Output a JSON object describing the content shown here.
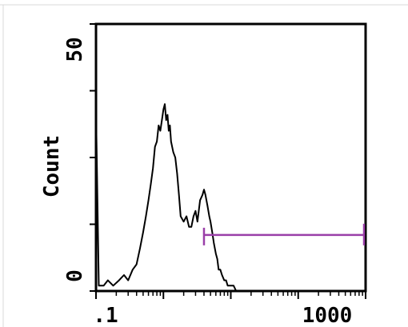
{
  "chart_data": {
    "type": "area",
    "subtype": "flow-cytometry-histogram",
    "xscale": "log",
    "xlim": [
      0.1,
      1000
    ],
    "ylim": [
      0,
      50
    ],
    "ylabel": "Count",
    "xlabel": "",
    "x_tick_labels": [
      ".1",
      "1000"
    ],
    "y_tick_labels": [
      "0",
      "50"
    ],
    "grid": false,
    "legend": "none",
    "series": [
      {
        "x": [
          0.1,
          0.11,
          0.13,
          0.15,
          0.18,
          0.22,
          0.26,
          0.3,
          0.35,
          0.4,
          0.45,
          0.5,
          0.55,
          0.6,
          0.65,
          0.7,
          0.75,
          0.8,
          0.85,
          0.9,
          0.95,
          1.0,
          1.05,
          1.1,
          1.15,
          1.2,
          1.25,
          1.3,
          1.4,
          1.5,
          1.6,
          1.7,
          1.8,
          2.0,
          2.2,
          2.4,
          2.6,
          2.8,
          3.0,
          3.2,
          3.5,
          3.8,
          4.0,
          4.2,
          4.5,
          4.8,
          5.0,
          5.3,
          5.6,
          6.0,
          6.3,
          6.6,
          7.0,
          7.4,
          8.0,
          8.5,
          9.0,
          9.5,
          10.0,
          10.5,
          11.0,
          12.0,
          13.0,
          14.0,
          15.0,
          16.0,
          18.0,
          20.0,
          22.0,
          25.0,
          28.0,
          30.0
        ],
        "values": [
          34,
          1,
          1,
          2,
          1,
          2,
          3,
          2,
          4,
          5,
          8,
          11,
          14,
          17,
          20,
          23,
          27,
          28,
          31,
          30,
          32,
          34,
          35,
          32,
          33,
          30,
          31,
          28,
          26,
          25,
          22,
          18,
          14,
          13,
          14,
          12,
          12,
          14,
          15,
          13,
          17,
          18,
          19,
          18,
          16,
          14,
          13,
          11,
          9,
          7,
          6,
          4,
          4,
          3,
          2,
          2,
          1,
          1,
          1,
          1,
          1,
          0,
          0,
          0,
          0,
          0,
          0,
          0,
          0,
          0,
          0,
          0
        ]
      }
    ],
    "gate": {
      "x_start": 4.0,
      "x_end": 1000,
      "y": 10.5
    },
    "colors": {
      "histogram": "#000000",
      "gate": "#9a3fa8"
    }
  }
}
